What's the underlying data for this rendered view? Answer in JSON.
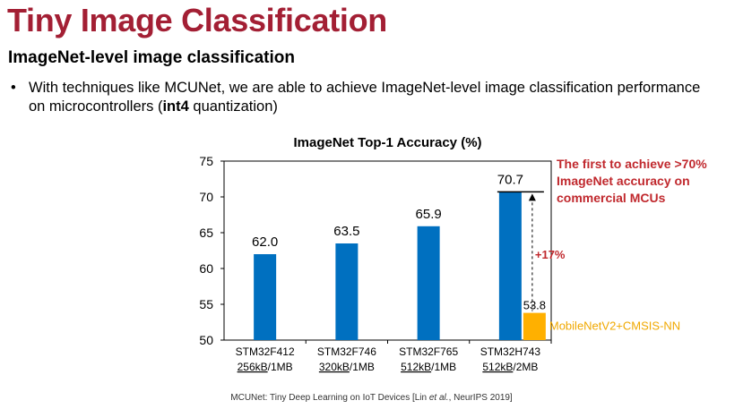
{
  "slide": {
    "title": "Tiny Image Classification",
    "subtitle": "ImageNet-level image classification",
    "bullet_prefix": "With techniques like MCUNet, we are able to achieve ImageNet-level image classification performance on microcontrollers (",
    "bullet_bold": "int4",
    "bullet_suffix": " quantization)",
    "footnote_prefix": "MCUNet: Tiny Deep Learning on IoT Devices [Lin ",
    "footnote_italic": "et al.",
    "footnote_suffix": ", NeurIPS 2019]"
  },
  "chart_data": {
    "type": "bar",
    "title": "ImageNet Top-1 Accuracy (%)",
    "xlabel": "",
    "ylabel": "",
    "ylim": [
      50,
      75
    ],
    "yticks": [
      50,
      55,
      60,
      65,
      70,
      75
    ],
    "grid": false,
    "categories": [
      {
        "name": "STM32F412",
        "sram": "256kB",
        "flash": "/1MB"
      },
      {
        "name": "STM32F746",
        "sram": "320kB",
        "flash": "/1MB"
      },
      {
        "name": "STM32F765",
        "sram": "512kB",
        "flash": "/1MB"
      },
      {
        "name": "STM32H743",
        "sram": "512kB",
        "flash": "/2MB"
      }
    ],
    "series": [
      {
        "name": "",
        "color": "#0070c0",
        "values": [
          62.0,
          63.5,
          65.9,
          70.7
        ],
        "labels": [
          "62.0",
          "63.5",
          "65.9",
          "70.7"
        ]
      },
      {
        "name": "MobileNetV2+CMSIS-NN",
        "color": "#ffb000",
        "values": [
          null,
          null,
          null,
          53.8
        ],
        "labels": [
          "",
          "",
          "",
          "53.8"
        ]
      }
    ],
    "annotations": {
      "gain": "+17%",
      "callout": [
        "The first to achieve >70%",
        "ImageNet accuracy on",
        "commercial MCUs"
      ],
      "callout_color": "#c0282d"
    }
  }
}
